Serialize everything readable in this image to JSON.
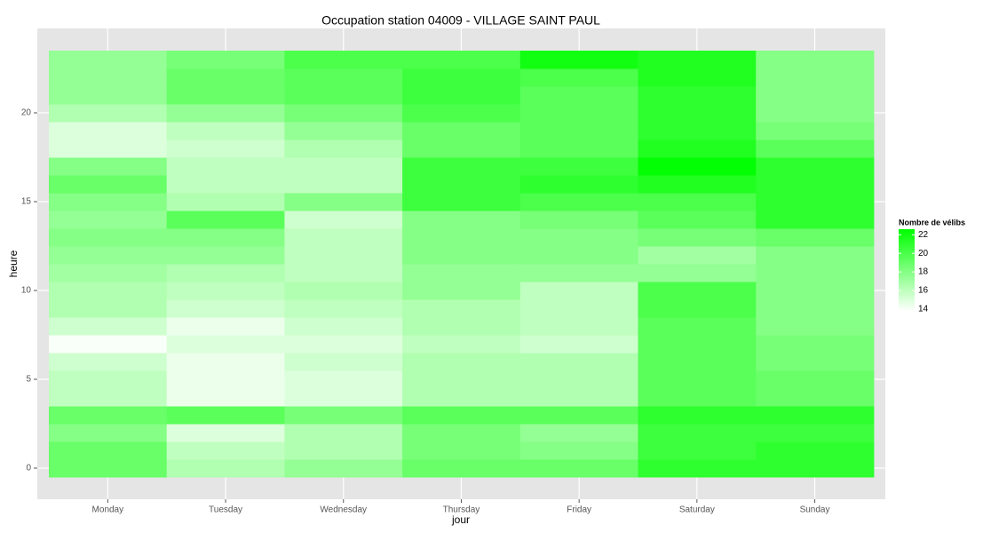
{
  "chart_data": {
    "type": "heatmap",
    "title": "Occupation station 04009 - VILLAGE SAINT PAUL",
    "xlabel": "jour",
    "ylabel": "heure",
    "categories": [
      "Monday",
      "Tuesday",
      "Wednesday",
      "Thursday",
      "Friday",
      "Saturday",
      "Sunday"
    ],
    "y": [
      0,
      1,
      2,
      3,
      4,
      5,
      6,
      7,
      8,
      9,
      10,
      11,
      12,
      13,
      14,
      15,
      16,
      17,
      18,
      19,
      20,
      21,
      22,
      23
    ],
    "values": [
      [
        19,
        19,
        18,
        19,
        16,
        16,
        15.5,
        14,
        15.5,
        16.5,
        16.5,
        17,
        17.5,
        18,
        17.5,
        18,
        19,
        18,
        15,
        15,
        16.5,
        17.5,
        17.5,
        17.5
      ],
      [
        16.5,
        16,
        15,
        19.5,
        14.5,
        14.5,
        14.5,
        15,
        14.5,
        15.5,
        16,
        16.5,
        17.5,
        18,
        19.5,
        16.5,
        16,
        16,
        15.5,
        16,
        17.5,
        19,
        19,
        18.5
      ],
      [
        17.5,
        16.5,
        16.5,
        18.5,
        15,
        15,
        15.5,
        15,
        15.5,
        16,
        16.5,
        16,
        16,
        16,
        15.5,
        18,
        16,
        16,
        16.5,
        17.5,
        18.5,
        19.5,
        19.5,
        20
      ],
      [
        19,
        18.5,
        18.5,
        19.5,
        16.5,
        16.5,
        16.5,
        16,
        16.5,
        16.5,
        17.5,
        17.5,
        18,
        18,
        18,
        20.5,
        20.5,
        20.5,
        19,
        19,
        20,
        20.5,
        20.5,
        20
      ],
      [
        19,
        18,
        17.5,
        19.5,
        16.5,
        16.5,
        16.5,
        15.5,
        16,
        16,
        16,
        17.5,
        18,
        18,
        18.5,
        20,
        21,
        20.5,
        19.5,
        19.5,
        19.5,
        19.5,
        20,
        22
      ],
      [
        21,
        20.5,
        20.5,
        21,
        19.5,
        19.5,
        19.5,
        19.5,
        19.5,
        20,
        20,
        17.5,
        17,
        18.5,
        19.5,
        20,
        21.5,
        22.5,
        21.5,
        21,
        21,
        21,
        21.5,
        21.5
      ],
      [
        21,
        21,
        20.5,
        21,
        19,
        19,
        18.5,
        18.5,
        18,
        18,
        18,
        18,
        18,
        19,
        21,
        21,
        21,
        21,
        19.5,
        18.5,
        18,
        18,
        18,
        18
      ]
    ],
    "ylim": [
      -1.75,
      24.75
    ],
    "yticks": [
      0,
      5,
      10,
      15,
      20
    ],
    "grid": true,
    "color_low": "#ffffff",
    "color_high": "#00ff00",
    "zlim": [
      13.8,
      22.6
    ],
    "legend": {
      "title": "Nombre de vélibs",
      "ticks": [
        14,
        16,
        18,
        20,
        22
      ],
      "position": "right"
    }
  }
}
